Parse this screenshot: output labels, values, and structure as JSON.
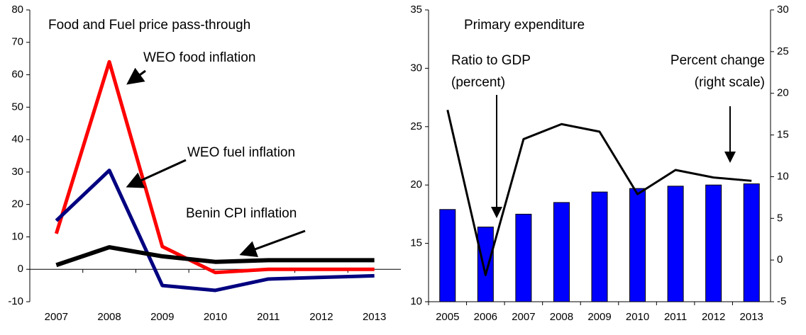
{
  "chart_data": [
    {
      "type": "line",
      "title": "Food and Fuel price pass-through",
      "categories": [
        "2007",
        "2008",
        "2009",
        "2010",
        "2011",
        "2012",
        "2013"
      ],
      "ylim": [
        -10,
        80
      ],
      "yticks": [
        -10,
        0,
        10,
        20,
        30,
        40,
        50,
        60,
        70,
        80
      ],
      "series": [
        {
          "name": "WEO food inflation",
          "color": "#ff0000",
          "values": [
            11,
            64,
            7,
            -1,
            0,
            0,
            0
          ]
        },
        {
          "name": "WEO fuel inflation",
          "color": "#000080",
          "values": [
            15,
            30.5,
            -5,
            -6.5,
            -3,
            -2.5,
            -2
          ]
        },
        {
          "name": "Benin CPI inflation",
          "color": "#000000",
          "values": [
            1.3,
            6.8,
            4,
            2.3,
            2.8,
            2.8,
            2.8
          ]
        }
      ]
    },
    {
      "type": "bar",
      "title": "Primary expenditure",
      "categories": [
        "2005",
        "2006",
        "2007",
        "2008",
        "2009",
        "2010",
        "2011",
        "2012",
        "2013"
      ],
      "ylim": [
        10,
        35
      ],
      "yticks": [
        10,
        15,
        20,
        25,
        30,
        35
      ],
      "y2lim": [
        -5,
        30
      ],
      "y2ticks": [
        -5,
        0,
        5,
        10,
        15,
        20,
        25,
        30
      ],
      "annotations": [
        "Ratio to GDP",
        "(percent)",
        "Percent change",
        "(right scale)"
      ],
      "series": [
        {
          "type": "bar",
          "color": "#0000ff",
          "values": [
            17.9,
            16.4,
            17.5,
            18.5,
            19.4,
            19.7,
            19.9,
            20.0,
            20.1
          ]
        },
        {
          "type": "line",
          "axis": "y2",
          "color": "#000000",
          "values": [
            18,
            -1.8,
            14.5,
            16.3,
            15.4,
            7.9,
            10.8,
            9.9,
            9.5
          ]
        }
      ]
    }
  ]
}
